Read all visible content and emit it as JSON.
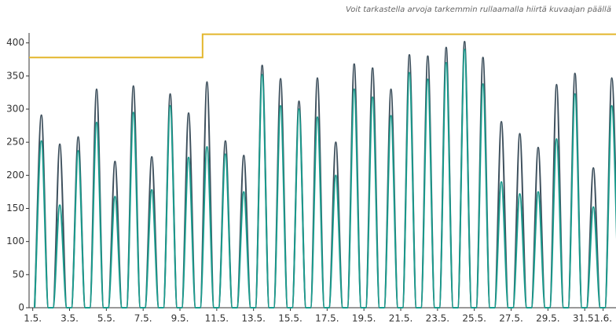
{
  "chart_data": {
    "type": "line",
    "note": "Voit tarkastella arvoja tarkemmin rullaamalla hiirtä kuvaajan päällä",
    "x": [
      1.1,
      1.47,
      1.85,
      2.1,
      2.47,
      2.85,
      3.1,
      3.47,
      3.85,
      4.1,
      4.47,
      4.85,
      5.1,
      5.47,
      5.85,
      6.1,
      6.47,
      6.85,
      7.1,
      7.47,
      7.85,
      8.1,
      8.47,
      8.85,
      9.1,
      9.47,
      9.85,
      10.1,
      10.47,
      10.85,
      11.1,
      11.47,
      11.85,
      12.1,
      12.47,
      12.85,
      13.1,
      13.47,
      13.85,
      14.1,
      14.47,
      14.85,
      15.1,
      15.47,
      15.85,
      16.1,
      16.47,
      16.85,
      17.1,
      17.47,
      17.85,
      18.1,
      18.47,
      18.85,
      19.1,
      19.47,
      19.85,
      20.1,
      20.47,
      20.85,
      21.1,
      21.47,
      21.85,
      22.1,
      22.47,
      22.85,
      23.1,
      23.47,
      23.85,
      24.1,
      24.47,
      24.85,
      25.1,
      25.47,
      25.85,
      26.1,
      26.47,
      26.85,
      27.1,
      27.47,
      27.85,
      28.1,
      28.47,
      28.85,
      29.1,
      29.47,
      29.85,
      30.1,
      30.47,
      30.85,
      31.1,
      31.47,
      31.85,
      32.1,
      32.47,
      32.85
    ],
    "series": [
      {
        "color": "#3d4f5c",
        "smooth": true,
        "values": [
          0,
          291,
          0,
          0,
          247,
          0,
          0,
          258,
          0,
          0,
          330,
          0,
          0,
          221,
          0,
          0,
          335,
          0,
          0,
          228,
          0,
          0,
          323,
          0,
          0,
          294,
          0,
          0,
          341,
          0,
          0,
          252,
          0,
          0,
          230,
          0,
          0,
          366,
          0,
          0,
          346,
          0,
          0,
          312,
          0,
          0,
          347,
          0,
          0,
          250,
          0,
          0,
          368,
          0,
          0,
          362,
          0,
          0,
          330,
          0,
          0,
          382,
          0,
          0,
          380,
          0,
          0,
          393,
          0,
          0,
          402,
          0,
          0,
          378,
          0,
          0,
          281,
          0,
          0,
          263,
          0,
          0,
          242,
          0,
          0,
          337,
          0,
          0,
          354,
          0,
          0,
          211,
          0,
          0,
          347,
          0
        ]
      },
      {
        "color": "#1a9a8c",
        "smooth": true,
        "values": [
          0,
          252,
          0,
          0,
          155,
          0,
          0,
          237,
          0,
          0,
          280,
          0,
          0,
          168,
          0,
          0,
          295,
          0,
          0,
          178,
          0,
          0,
          305,
          0,
          0,
          227,
          0,
          0,
          243,
          0,
          0,
          232,
          0,
          0,
          175,
          0,
          0,
          352,
          0,
          0,
          305,
          0,
          0,
          300,
          0,
          0,
          288,
          0,
          0,
          200,
          0,
          0,
          330,
          0,
          0,
          318,
          0,
          0,
          290,
          0,
          0,
          355,
          0,
          0,
          345,
          0,
          0,
          370,
          0,
          0,
          390,
          0,
          0,
          338,
          0,
          0,
          190,
          0,
          0,
          172,
          0,
          0,
          175,
          0,
          0,
          255,
          0,
          0,
          323,
          0,
          0,
          152,
          0,
          0,
          305,
          0
        ]
      },
      {
        "color": "#e3b62c",
        "x": [
          0.8,
          10.23,
          10.23,
          32.8
        ],
        "values": [
          378,
          378,
          413,
          413
        ]
      }
    ],
    "xlim": [
      0.8,
      32.7
    ],
    "xticks": [
      {
        "value": 1,
        "label": "1.5."
      },
      {
        "value": 3,
        "label": "3.5."
      },
      {
        "value": 5,
        "label": "5.5."
      },
      {
        "value": 7,
        "label": "7.5."
      },
      {
        "value": 9,
        "label": "9.5."
      },
      {
        "value": 11,
        "label": "11.5."
      },
      {
        "value": 13,
        "label": "13.5."
      },
      {
        "value": 15,
        "label": "15.5."
      },
      {
        "value": 17,
        "label": "17.5."
      },
      {
        "value": 19,
        "label": "19.5."
      },
      {
        "value": 21,
        "label": "21.5."
      },
      {
        "value": 23,
        "label": "23.5."
      },
      {
        "value": 25,
        "label": "25.5."
      },
      {
        "value": 27,
        "label": "27.5."
      },
      {
        "value": 29,
        "label": "29.5."
      },
      {
        "value": 31,
        "label": "31.5."
      },
      {
        "value": 32,
        "label": "1.6."
      }
    ],
    "ylim": [
      0,
      415
    ],
    "yticks": [
      0,
      50,
      100,
      150,
      200,
      250,
      300,
      350,
      400
    ]
  }
}
